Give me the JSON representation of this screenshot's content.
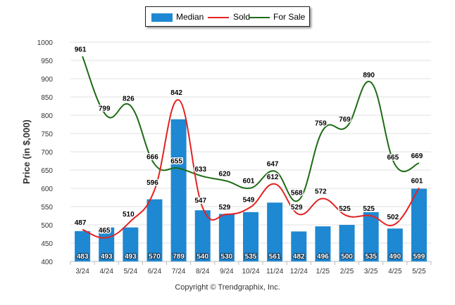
{
  "chart_data": {
    "type": "bar",
    "categories": [
      "3/24",
      "4/24",
      "5/24",
      "6/24",
      "7/24",
      "8/24",
      "9/24",
      "10/24",
      "11/24",
      "12/24",
      "1/25",
      "2/25",
      "3/25",
      "4/25",
      "5/25"
    ],
    "series": [
      {
        "name": "Median",
        "type": "bar",
        "color": "#1e88d2",
        "values": [
          483,
          493,
          493,
          570,
          789,
          540,
          530,
          535,
          561,
          482,
          496,
          500,
          535,
          490,
          599
        ]
      },
      {
        "name": "Sold",
        "type": "line",
        "color": "#e32222",
        "values": [
          487,
          465,
          510,
          596,
          842,
          547,
          529,
          549,
          612,
          529,
          572,
          525,
          525,
          502,
          601
        ]
      },
      {
        "name": "For Sale",
        "type": "line",
        "color": "#1e6b14",
        "values": [
          961,
          799,
          826,
          666,
          655,
          633,
          620,
          601,
          647,
          568,
          759,
          769,
          890,
          665,
          669
        ]
      }
    ],
    "ylabel": "Price (in $,000)",
    "xlabel": "",
    "ylim": [
      400,
      1000
    ],
    "yticks": [
      400,
      450,
      500,
      550,
      600,
      650,
      700,
      750,
      800,
      850,
      900,
      950,
      1000
    ],
    "grid": true,
    "legend": "top-center"
  },
  "legend": {
    "median": "Median",
    "sold": "Sold",
    "for_sale": "For Sale"
  },
  "footer": {
    "copyright": "Copyright © Trendgraphix, Inc."
  }
}
